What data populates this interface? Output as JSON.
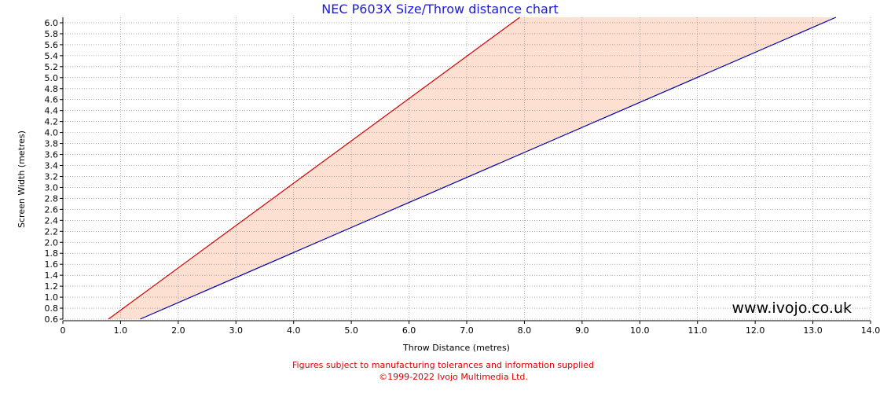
{
  "chart_data": {
    "type": "area",
    "title": "NEC P603X Size/Throw distance chart",
    "xlabel": "Throw Distance (metres)",
    "ylabel": "Screen Width (metres)",
    "xlim": [
      0,
      14
    ],
    "ylim": [
      0.6,
      6.1
    ],
    "x_ticks": [
      0,
      1,
      2,
      3,
      4,
      5,
      6,
      7,
      8,
      9,
      10,
      11,
      12,
      13,
      14
    ],
    "x_tick_labels": [
      "0",
      "1.0",
      "2.0",
      "3.0",
      "4.0",
      "5.0",
      "6.0",
      "7.0",
      "8.0",
      "9.0",
      "10.0",
      "11.0",
      "12.0",
      "13.0",
      "14.0"
    ],
    "y_ticks": [
      0.6,
      0.8,
      1.0,
      1.2,
      1.4,
      1.6,
      1.8,
      2.0,
      2.2,
      2.4,
      2.6,
      2.8,
      3.0,
      3.2,
      3.4,
      3.6,
      3.8,
      4.0,
      4.2,
      4.4,
      4.6,
      4.8,
      5.0,
      5.2,
      5.4,
      5.6,
      5.8,
      6.0
    ],
    "y_tick_labels": [
      "0.6",
      "0.8",
      "1.0",
      "1.2",
      "1.4",
      "1.6",
      "1.8",
      "2.0",
      "2.2",
      "2.4",
      "2.6",
      "2.8",
      "3.0",
      "3.2",
      "3.4",
      "3.6",
      "3.8",
      "4.0",
      "4.2",
      "4.4",
      "4.6",
      "4.8",
      "5.0",
      "5.2",
      "5.4",
      "5.6",
      "5.8",
      "6.0"
    ],
    "grid": true,
    "series": [
      {
        "color": "#d40000",
        "x": [
          0.79,
          7.92
        ],
        "y": [
          0.6,
          6.1
        ]
      },
      {
        "color": "#0000b4",
        "x": [
          1.34,
          13.4
        ],
        "y": [
          0.6,
          6.1
        ]
      }
    ],
    "fill_color": "#fde0d2",
    "watermark": "www.ivojo.co.uk",
    "footer_lines": [
      "Figures subject to manufacturing tolerances and information supplied",
      "©1999-2022 Ivojo Multimedia Ltd."
    ],
    "footer_color": "#e00000"
  }
}
